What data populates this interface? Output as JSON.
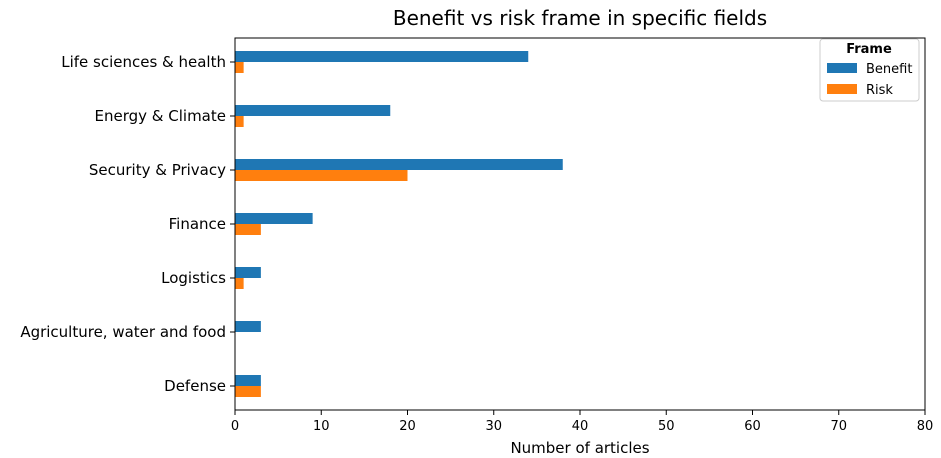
{
  "chart_data": {
    "type": "bar",
    "orientation": "horizontal",
    "title": "Benefit vs risk frame in specific fields",
    "xlabel": "Number of articles",
    "ylabel": "",
    "xlim": [
      0,
      80
    ],
    "xticks": [
      0,
      10,
      20,
      30,
      40,
      50,
      60,
      70,
      80
    ],
    "categories": [
      "Life sciences & health",
      "Energy & Climate",
      "Security & Privacy",
      "Finance",
      "Logistics",
      "Agriculture, water and food",
      "Defense"
    ],
    "series": [
      {
        "name": "Benefit",
        "color": "#1f77b4",
        "values": [
          34,
          18,
          38,
          9,
          3,
          3,
          3
        ]
      },
      {
        "name": "Risk",
        "color": "#ff7f0e",
        "values": [
          1,
          1,
          20,
          3,
          1,
          0,
          3
        ]
      }
    ],
    "legend": {
      "title": "Frame",
      "position": "top-right"
    },
    "grid": false
  }
}
